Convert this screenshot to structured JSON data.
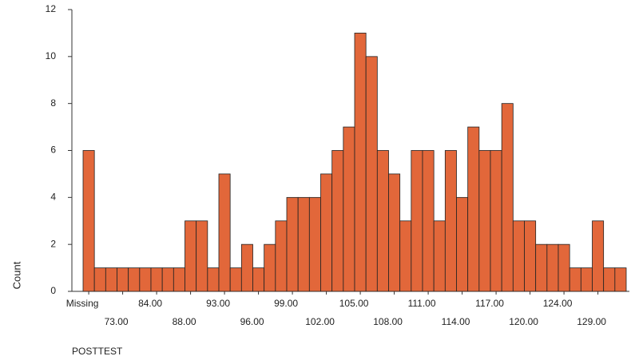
{
  "chart_data": {
    "type": "bar",
    "x_label": "POSTTEST",
    "y_label": "Count",
    "categories": [
      "Missing",
      null,
      null,
      "73.00",
      null,
      null,
      "84.00",
      null,
      null,
      "88.00",
      null,
      null,
      "93.00",
      null,
      null,
      "96.00",
      null,
      null,
      "99.00",
      null,
      null,
      "102.00",
      null,
      null,
      "105.00",
      null,
      null,
      "108.00",
      null,
      null,
      "111.00",
      null,
      null,
      "114.00",
      null,
      null,
      "117.00",
      null,
      null,
      "120.00",
      null,
      null,
      "124.00",
      null,
      null,
      "129.00",
      null,
      null
    ],
    "values": [
      6,
      1,
      1,
      1,
      1,
      1,
      1,
      1,
      1,
      3,
      3,
      1,
      5,
      1,
      2,
      1,
      2,
      3,
      4,
      4,
      4,
      5,
      6,
      7,
      11,
      10,
      6,
      5,
      3,
      6,
      6,
      3,
      6,
      4,
      7,
      6,
      6,
      8,
      3,
      3,
      2,
      2,
      2,
      1,
      1,
      3,
      1,
      1
    ],
    "color": "#e2673a",
    "ylim": [
      0,
      12
    ],
    "yticks": [
      0,
      2,
      4,
      6,
      8,
      10,
      12
    ],
    "grid": false
  }
}
